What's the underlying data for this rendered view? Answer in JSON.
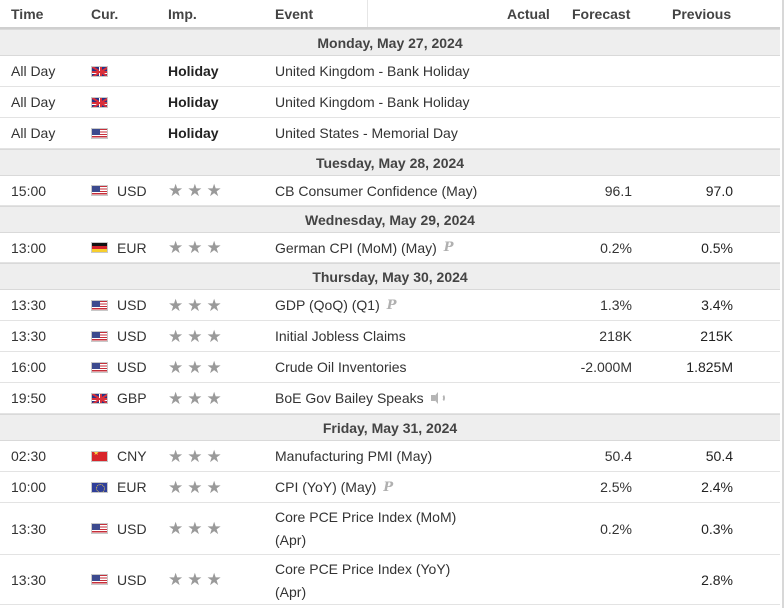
{
  "columns": {
    "time": "Time",
    "currency": "Cur.",
    "importance": "Imp.",
    "event": "Event",
    "actual": "Actual",
    "forecast": "Forecast",
    "previous": "Previous"
  },
  "groups": [
    {
      "date": "Monday, May 27, 2024",
      "rows": [
        {
          "time": "All Day",
          "flag": "gb-flag-icon",
          "currency": "",
          "importance": "Holiday",
          "event": "United Kingdom - Bank Holiday",
          "actual": "",
          "forecast": "",
          "previous": ""
        },
        {
          "time": "All Day",
          "flag": "gb-flag-icon",
          "currency": "",
          "importance": "Holiday",
          "event": "United Kingdom - Bank Holiday",
          "actual": "",
          "forecast": "",
          "previous": ""
        },
        {
          "time": "All Day",
          "flag": "us-flag-icon",
          "currency": "",
          "importance": "Holiday",
          "event": "United States - Memorial Day",
          "actual": "",
          "forecast": "",
          "previous": ""
        }
      ]
    },
    {
      "date": "Tuesday, May 28, 2024",
      "rows": [
        {
          "time": "15:00",
          "flag": "us-flag-icon",
          "currency": "USD",
          "stars": 3,
          "event": "CB Consumer Confidence (May)",
          "actual": "",
          "forecast": "96.1",
          "previous": "97.0"
        }
      ]
    },
    {
      "date": "Wednesday, May 29, 2024",
      "rows": [
        {
          "time": "13:00",
          "flag": "de-flag-icon",
          "currency": "EUR",
          "stars": 3,
          "event": "German CPI (MoM) (May)",
          "event_icon": "preliminary-icon",
          "event_icon_text": "P",
          "actual": "",
          "forecast": "0.2%",
          "previous": "0.5%"
        }
      ]
    },
    {
      "date": "Thursday, May 30, 2024",
      "rows": [
        {
          "time": "13:30",
          "flag": "us-flag-icon",
          "currency": "USD",
          "stars": 3,
          "event": "GDP (QoQ) (Q1)",
          "event_icon": "preliminary-icon",
          "event_icon_text": "P",
          "actual": "",
          "forecast": "1.3%",
          "previous": "3.4%"
        },
        {
          "time": "13:30",
          "flag": "us-flag-icon",
          "currency": "USD",
          "stars": 3,
          "event": "Initial Jobless Claims",
          "actual": "",
          "forecast": "218K",
          "previous": "215K"
        },
        {
          "time": "16:00",
          "flag": "us-flag-icon",
          "currency": "USD",
          "stars": 3,
          "event": "Crude Oil Inventories",
          "actual": "",
          "forecast": "-2.000M",
          "previous": "1.825M"
        },
        {
          "time": "19:50",
          "flag": "gb-flag-icon",
          "currency": "GBP",
          "stars": 3,
          "event": "BoE Gov Bailey Speaks",
          "event_icon": "speaker-icon",
          "actual": "",
          "forecast": "",
          "previous": ""
        }
      ]
    },
    {
      "date": "Friday, May 31, 2024",
      "rows": [
        {
          "time": "02:30",
          "flag": "cn-flag-icon",
          "currency": "CNY",
          "stars": 3,
          "event": "Manufacturing PMI (May)",
          "actual": "",
          "forecast": "50.4",
          "previous": "50.4"
        },
        {
          "time": "10:00",
          "flag": "eu-flag-icon",
          "currency": "EUR",
          "stars": 3,
          "event": "CPI (YoY) (May)",
          "event_icon": "preliminary-icon",
          "event_icon_text": "P",
          "actual": "",
          "forecast": "2.5%",
          "previous": "2.4%"
        },
        {
          "time": "13:30",
          "flag": "us-flag-icon",
          "currency": "USD",
          "stars": 3,
          "event_line1": "Core PCE Price Index (MoM)",
          "event_line2": "(Apr)",
          "actual": "",
          "forecast": "0.2%",
          "previous": "0.3%"
        },
        {
          "time": "13:30",
          "flag": "us-flag-icon",
          "currency": "USD",
          "stars": 3,
          "event_line1": "Core PCE Price Index (YoY)",
          "event_line2": "(Apr)",
          "actual": "",
          "forecast": "",
          "previous": "2.8%"
        }
      ]
    }
  ],
  "star_glyph": "★",
  "colors": {
    "star": "#9a9a9a",
    "day_header_bg": "#eeeeee",
    "text": "#333333"
  }
}
